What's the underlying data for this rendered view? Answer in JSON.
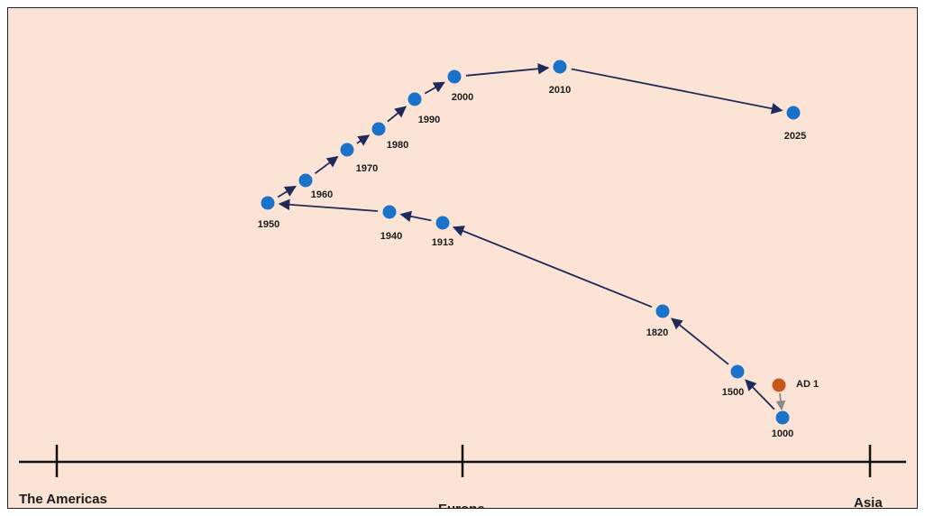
{
  "colors": {
    "background": "#fbe4d5",
    "point": "#1a73c8",
    "start_point": "#c8571a",
    "arrow": "#1f2a5a",
    "start_arrow": "#8a8a8a",
    "axis": "#111111"
  },
  "axis": {
    "left": "The Americas",
    "center": "Europe",
    "right": "Asia"
  },
  "points": [
    {
      "id": "ad1",
      "label": "AD 1"
    },
    {
      "id": "1000",
      "label": "1000"
    },
    {
      "id": "1500",
      "label": "1500"
    },
    {
      "id": "1820",
      "label": "1820"
    },
    {
      "id": "1913",
      "label": "1913"
    },
    {
      "id": "1940",
      "label": "1940"
    },
    {
      "id": "1950",
      "label": "1950"
    },
    {
      "id": "1960",
      "label": "1960"
    },
    {
      "id": "1970",
      "label": "1970"
    },
    {
      "id": "1980",
      "label": "1980"
    },
    {
      "id": "1990",
      "label": "1990"
    },
    {
      "id": "2000",
      "label": "2000"
    },
    {
      "id": "2010",
      "label": "2010"
    },
    {
      "id": "2025",
      "label": "2025"
    }
  ]
}
